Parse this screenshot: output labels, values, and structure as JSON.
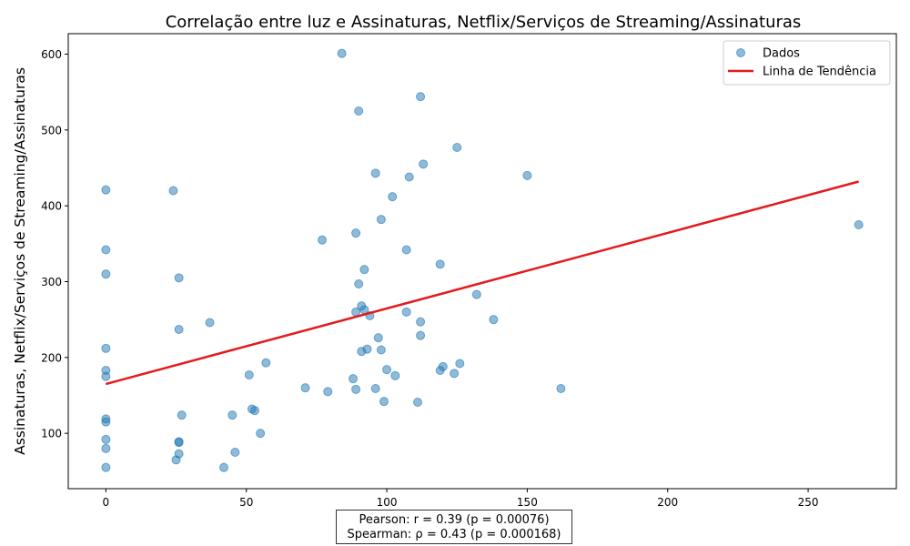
{
  "chart_data": {
    "type": "scatter",
    "title": "Correlação entre luz e Assinaturas, Netflix/Serviços de Streaming/Assinaturas",
    "xlabel": "luz",
    "ylabel": "Assinaturas, Netflix/Serviços de Streaming/Assinaturas",
    "xlim": [
      -13.4,
      281.4
    ],
    "ylim": [
      27,
      627
    ],
    "xticks": [
      0,
      50,
      100,
      150,
      200,
      250
    ],
    "yticks": [
      100,
      200,
      300,
      400,
      500,
      600
    ],
    "grid": false,
    "legend_position": "top-right",
    "legend": [
      "Dados",
      "Linha de Tendência"
    ],
    "colors": {
      "points": "#1f77b4",
      "trend": "#e41a1c"
    },
    "points": [
      [
        0,
        421
      ],
      [
        0,
        342
      ],
      [
        0,
        310
      ],
      [
        0,
        212
      ],
      [
        0,
        183
      ],
      [
        0,
        175
      ],
      [
        0,
        119
      ],
      [
        0,
        115
      ],
      [
        0,
        92
      ],
      [
        0,
        80
      ],
      [
        0,
        55
      ],
      [
        24,
        420
      ],
      [
        25,
        65
      ],
      [
        26,
        73
      ],
      [
        26,
        88
      ],
      [
        26,
        89
      ],
      [
        26,
        305
      ],
      [
        26,
        237
      ],
      [
        27,
        124
      ],
      [
        37,
        246
      ],
      [
        42,
        55
      ],
      [
        45,
        124
      ],
      [
        46,
        75
      ],
      [
        51,
        177
      ],
      [
        52,
        132
      ],
      [
        53,
        130
      ],
      [
        55,
        100
      ],
      [
        57,
        193
      ],
      [
        71,
        160
      ],
      [
        77,
        355
      ],
      [
        79,
        155
      ],
      [
        84,
        601
      ],
      [
        88,
        172
      ],
      [
        89,
        158
      ],
      [
        89,
        260
      ],
      [
        89,
        364
      ],
      [
        90,
        525
      ],
      [
        90,
        297
      ],
      [
        91,
        268
      ],
      [
        91,
        208
      ],
      [
        92,
        263
      ],
      [
        92,
        316
      ],
      [
        93,
        211
      ],
      [
        94,
        255
      ],
      [
        96,
        443
      ],
      [
        96,
        159
      ],
      [
        97,
        226
      ],
      [
        98,
        382
      ],
      [
        98,
        210
      ],
      [
        99,
        142
      ],
      [
        100,
        184
      ],
      [
        102,
        412
      ],
      [
        103,
        176
      ],
      [
        107,
        342
      ],
      [
        107,
        260
      ],
      [
        108,
        438
      ],
      [
        111,
        141
      ],
      [
        112,
        544
      ],
      [
        112,
        247
      ],
      [
        112,
        229
      ],
      [
        113,
        455
      ],
      [
        119,
        323
      ],
      [
        119,
        183
      ],
      [
        120,
        188
      ],
      [
        124,
        179
      ],
      [
        125,
        477
      ],
      [
        126,
        192
      ],
      [
        132,
        283
      ],
      [
        138,
        250
      ],
      [
        150,
        440
      ],
      [
        162,
        159
      ],
      [
        268,
        375
      ]
    ],
    "trend_line": {
      "x": [
        0,
        268
      ],
      "y": [
        165,
        432
      ]
    },
    "annotations": [
      "Pearson: r = 0.39 (p = 0.00076)",
      "Spearman: ρ = 0.43 (p = 0.000168)"
    ]
  }
}
